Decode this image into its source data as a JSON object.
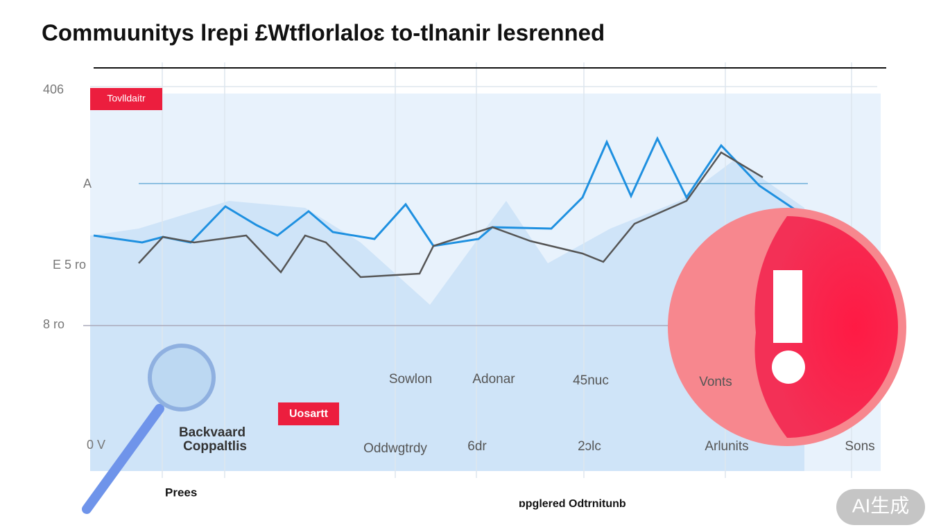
{
  "header": {
    "title": "Commuunitys lrepi £Wtflorlaloɛ to-tlnanir lesrenned"
  },
  "badges": {
    "top": "Tovlldaitr",
    "bottom": "Uosartt"
  },
  "axis_labels": {
    "left": [
      "406",
      "A",
      "E 5 ro",
      "8 ro",
      "0 V"
    ],
    "bottom": [
      "Oddwgtrdy",
      "6dr",
      "2ɔlc",
      "Arlunits",
      "Sons"
    ]
  },
  "mid_labels": [
    "Sowlon",
    "Adonar",
    "45nuc",
    "Vonts"
  ],
  "callout": {
    "line1": "Backvaard",
    "line2": "Coppaltlis"
  },
  "footer": {
    "left": "Prees",
    "center": "ɒpglered Odtrnitunb"
  },
  "watermark": "AI生成"
}
